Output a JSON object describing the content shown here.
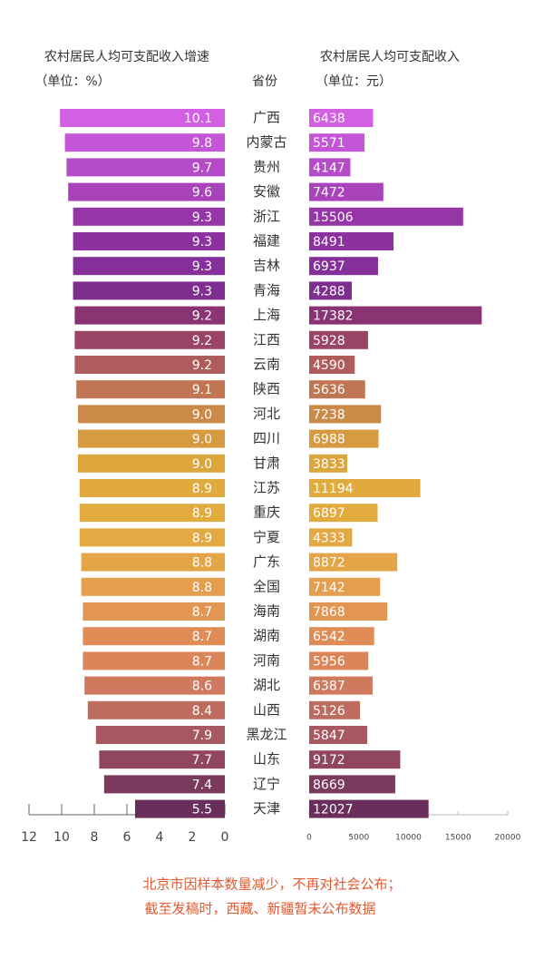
{
  "chart_data": [
    {
      "type": "hbar",
      "title": "农村居民人均可支配收入增速",
      "subtitle": "（单位：%）",
      "category_label": "省份",
      "categories": [
        "广西",
        "内蒙古",
        "贵州",
        "安徽",
        "浙江",
        "福建",
        "吉林",
        "青海",
        "上海",
        "江西",
        "云南",
        "陕西",
        "河北",
        "四川",
        "甘肃",
        "江苏",
        "重庆",
        "宁夏",
        "广东",
        "全国",
        "海南",
        "湖南",
        "河南",
        "湖北",
        "山西",
        "黑龙江",
        "山东",
        "辽宁",
        "天津"
      ],
      "values": [
        10.1,
        9.8,
        9.7,
        9.6,
        9.3,
        9.3,
        9.3,
        9.3,
        9.2,
        9.2,
        9.2,
        9.1,
        9.0,
        9.0,
        9.0,
        8.9,
        8.9,
        8.9,
        8.8,
        8.8,
        8.7,
        8.7,
        8.7,
        8.6,
        8.4,
        7.9,
        7.7,
        7.4,
        5.5
      ],
      "value_labels": [
        "10.1",
        "9.8",
        "9.7",
        "9.6",
        "9.3",
        "9.3",
        "9.3",
        "9.3",
        "9.2",
        "9.2",
        "9.2",
        "9.1",
        "9.0",
        "9.0",
        "9.0",
        "8.9",
        "8.9",
        "8.9",
        "8.8",
        "8.8",
        "8.7",
        "8.7",
        "8.7",
        "8.6",
        "8.4",
        "7.9",
        "7.7",
        "7.4",
        "5.5"
      ],
      "colors": [
        "#d35fe3",
        "#c455d6",
        "#b64bc9",
        "#a843bb",
        "#9535a8",
        "#8c319f",
        "#85309a",
        "#7e2e8f",
        "#8a3474",
        "#9a4468",
        "#ae5c5c",
        "#c07652",
        "#cc8a48",
        "#d69a40",
        "#dca63c",
        "#e0ab3c",
        "#e2ab3e",
        "#e3a942",
        "#e4a548",
        "#e49e4e",
        "#e39552",
        "#e08c56",
        "#db855a",
        "#cf7a5e",
        "#be6c60",
        "#a85860",
        "#90465f",
        "#7a3a5e",
        "#6a2e5c"
      ],
      "xlim": [
        0,
        12
      ],
      "x_reversed": true,
      "xticks": [
        12,
        10,
        8,
        6,
        4,
        2,
        0
      ]
    },
    {
      "type": "hbar",
      "title": "农村居民人均可支配收入",
      "subtitle": "（单位：元）",
      "values": [
        6438,
        5571,
        4147,
        7472,
        15506,
        8491,
        6937,
        4288,
        17382,
        5928,
        4590,
        5636,
        7238,
        6988,
        3833,
        11194,
        6897,
        4333,
        8872,
        7142,
        7868,
        6542,
        5956,
        6387,
        5126,
        5847,
        9172,
        8669,
        12027
      ],
      "colors": [
        "#d35fe3",
        "#c455d6",
        "#b64bc9",
        "#a843bb",
        "#9535a8",
        "#8c319f",
        "#85309a",
        "#7e2e8f",
        "#8a3474",
        "#9a4468",
        "#ae5c5c",
        "#c07652",
        "#cc8a48",
        "#d69a40",
        "#dca63c",
        "#e0ab3c",
        "#e2ab3e",
        "#e3a942",
        "#e4a548",
        "#e49e4e",
        "#e39552",
        "#e08c56",
        "#db855a",
        "#cf7a5e",
        "#be6c60",
        "#a85860",
        "#90465f",
        "#7a3a5e",
        "#6a2e5c"
      ],
      "xlim": [
        0,
        20000
      ],
      "x_reversed": false,
      "xticks": [
        0,
        5000,
        10000,
        15000,
        20000
      ]
    }
  ],
  "notes": [
    "北京市因样本数量减少，不再对社会公布；",
    "截至发稿时，西藏、新疆暂未公布数据"
  ]
}
